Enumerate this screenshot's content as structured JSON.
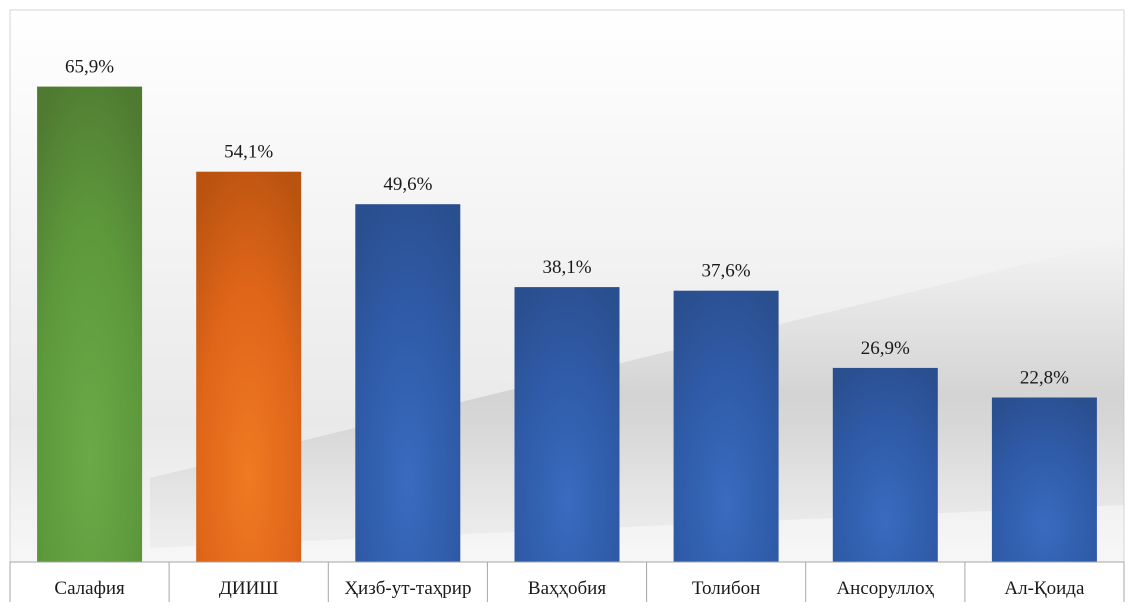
{
  "chart_data": {
    "type": "bar",
    "title": "",
    "xlabel": "",
    "ylabel": "",
    "categories": [
      "Салафия",
      "ДИИШ",
      "Ҳизб-ут-таҳрир",
      "Ваҳҳобия",
      "Толибон",
      "Ансоруллоҳ",
      "Ал-Қоида"
    ],
    "values": [
      65.9,
      54.1,
      49.6,
      38.1,
      37.6,
      26.9,
      22.8
    ],
    "value_labels": [
      "65,9%",
      "54,1%",
      "49,6%",
      "38,1%",
      "37,6%",
      "26,9%",
      "22,8%"
    ],
    "unit": "%",
    "ylim": [
      0,
      70
    ],
    "grid": false,
    "legend": "none",
    "bar_colors": [
      "#5e9a3c",
      "#e0661a",
      "#2f5ba8",
      "#2f5ba8",
      "#2f5ba8",
      "#2f5ba8",
      "#2f5ba8"
    ],
    "bar_colors_dark": [
      "#4f7a31",
      "#b9530f",
      "#2a4f8f",
      "#2a4f8f",
      "#2a4f8f",
      "#2a4f8f",
      "#2a4f8f"
    ],
    "bar_colors_light": [
      "#6aa848",
      "#ee7a22",
      "#3a6bc0",
      "#3a6bc0",
      "#3a6bc0",
      "#3a6bc0",
      "#3a6bc0"
    ]
  }
}
